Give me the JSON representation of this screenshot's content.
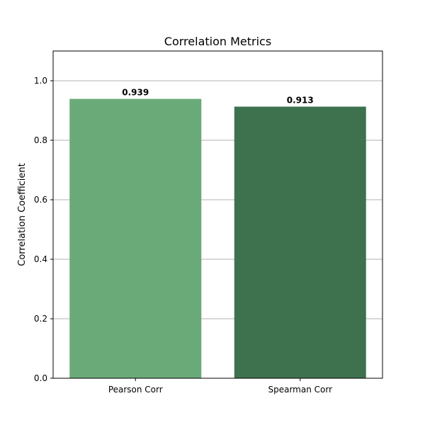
{
  "chart_data": {
    "type": "bar",
    "title": "Correlation Metrics",
    "xlabel": "",
    "ylabel": "Correlation Coefficient",
    "categories": [
      "Pearson Corr",
      "Spearman Corr"
    ],
    "values": [
      0.939,
      0.913
    ],
    "value_labels": [
      "0.939",
      "0.913"
    ],
    "bar_colors": [
      "#6aaa78",
      "#3e724e"
    ],
    "ylim": [
      0,
      1.1
    ],
    "yticks": [
      0.0,
      0.2,
      0.4,
      0.6,
      0.8,
      1.0
    ],
    "ytick_labels": [
      "0.0",
      "0.2",
      "0.4",
      "0.6",
      "0.8",
      "1.0"
    ],
    "grid": "y-axis on",
    "legend": "none"
  }
}
